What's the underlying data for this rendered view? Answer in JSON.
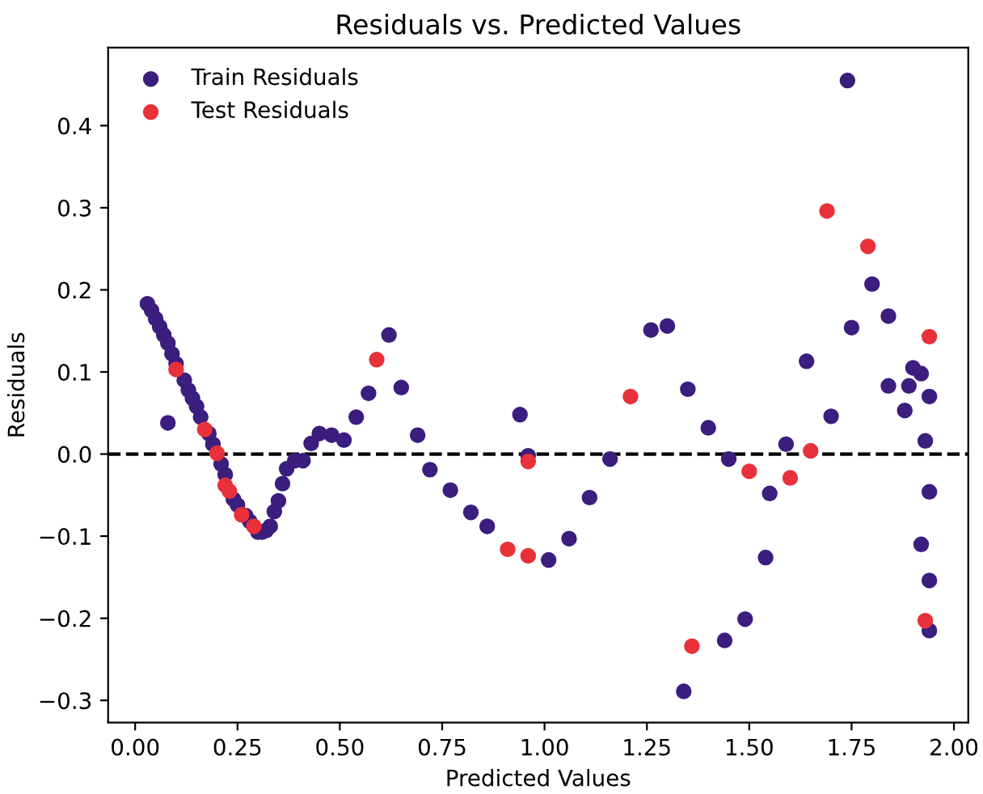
{
  "chart_data": {
    "type": "scatter",
    "title": "Residuals vs. Predicted Values",
    "xlabel": "Predicted Values",
    "ylabel": "Residuals",
    "series": [
      {
        "name": "Train Residuals",
        "color": "#3b1e7e",
        "x": [
          0.03,
          0.04,
          0.05,
          0.06,
          0.07,
          0.08,
          0.09,
          0.1,
          0.12,
          0.13,
          0.14,
          0.15,
          0.16,
          0.18,
          0.19,
          0.21,
          0.22,
          0.24,
          0.25,
          0.27,
          0.28,
          0.3,
          0.31,
          0.32,
          0.33,
          0.34,
          0.35,
          0.36,
          0.37,
          0.39,
          0.41,
          0.43,
          0.45,
          0.48,
          0.51,
          0.54,
          0.57,
          0.62,
          0.65,
          0.69,
          0.72,
          0.77,
          0.82,
          0.86,
          0.94,
          0.96,
          0.08,
          1.01,
          1.06,
          1.11,
          1.16,
          1.26,
          1.3,
          1.35,
          1.34,
          1.4,
          1.44,
          1.45,
          1.49,
          1.54,
          1.55,
          1.59,
          1.64,
          1.7,
          1.74,
          1.75,
          1.8,
          1.84,
          1.84,
          1.88,
          1.89,
          1.9,
          1.92,
          1.94,
          1.93,
          1.94,
          1.92,
          1.94,
          1.94
        ],
        "values": [
          0.183,
          0.175,
          0.165,
          0.155,
          0.145,
          0.135,
          0.122,
          0.11,
          0.09,
          0.078,
          0.068,
          0.058,
          0.045,
          0.025,
          0.012,
          -0.012,
          -0.025,
          -0.055,
          -0.062,
          -0.075,
          -0.082,
          -0.095,
          -0.095,
          -0.093,
          -0.088,
          -0.07,
          -0.057,
          -0.036,
          -0.018,
          -0.008,
          -0.008,
          0.013,
          0.025,
          0.023,
          0.017,
          0.045,
          0.074,
          0.145,
          0.081,
          0.023,
          -0.019,
          -0.044,
          -0.071,
          -0.088,
          0.048,
          -0.002,
          0.038,
          -0.129,
          -0.103,
          -0.053,
          -0.006,
          0.151,
          0.156,
          0.079,
          -0.289,
          0.032,
          -0.227,
          -0.006,
          -0.201,
          -0.126,
          -0.048,
          0.012,
          0.113,
          0.046,
          0.455,
          0.154,
          0.207,
          0.168,
          0.083,
          0.053,
          0.083,
          0.105,
          0.098,
          0.07,
          0.016,
          -0.046,
          -0.11,
          -0.154,
          -0.215
        ]
      },
      {
        "name": "Test Residuals",
        "color": "#e8313a",
        "x": [
          0.1,
          0.17,
          0.2,
          0.22,
          0.23,
          0.26,
          0.29,
          0.59,
          0.91,
          0.96,
          0.96,
          1.21,
          1.36,
          1.5,
          1.6,
          1.65,
          1.69,
          1.79,
          1.94,
          1.93
        ],
        "values": [
          0.103,
          0.03,
          0.001,
          -0.038,
          -0.045,
          -0.074,
          -0.088,
          0.115,
          -0.116,
          -0.009,
          -0.124,
          0.07,
          -0.234,
          -0.021,
          -0.029,
          0.004,
          0.296,
          0.253,
          0.143,
          -0.203
        ]
      }
    ],
    "xlim": [
      -0.066,
      2.035
    ],
    "ylim": [
      -0.327,
      0.495
    ],
    "xticks": [
      {
        "value": 0,
        "label": "0.00"
      },
      {
        "value": 0.25,
        "label": "0.25"
      },
      {
        "value": 0.5,
        "label": "0.50"
      },
      {
        "value": 0.75,
        "label": "0.75"
      },
      {
        "value": 1,
        "label": "1.00"
      },
      {
        "value": 1.25,
        "label": "1.25"
      },
      {
        "value": 1.5,
        "label": "1.50"
      },
      {
        "value": 1.75,
        "label": "1.75"
      },
      {
        "value": 2,
        "label": "2.00"
      }
    ],
    "yticks": [
      {
        "value": -0.3,
        "label": "−0.3"
      },
      {
        "value": -0.2,
        "label": "−0.2"
      },
      {
        "value": -0.1,
        "label": "−0.1"
      },
      {
        "value": 0,
        "label": "0.0"
      },
      0.1,
      0.2,
      0.3,
      0.4
    ],
    "ref_lines": [
      {
        "axis": "y",
        "value": 0,
        "color": "#000000",
        "line_style": "dashed"
      }
    ],
    "legend": "top left",
    "marker": "circle",
    "grid": false
  }
}
